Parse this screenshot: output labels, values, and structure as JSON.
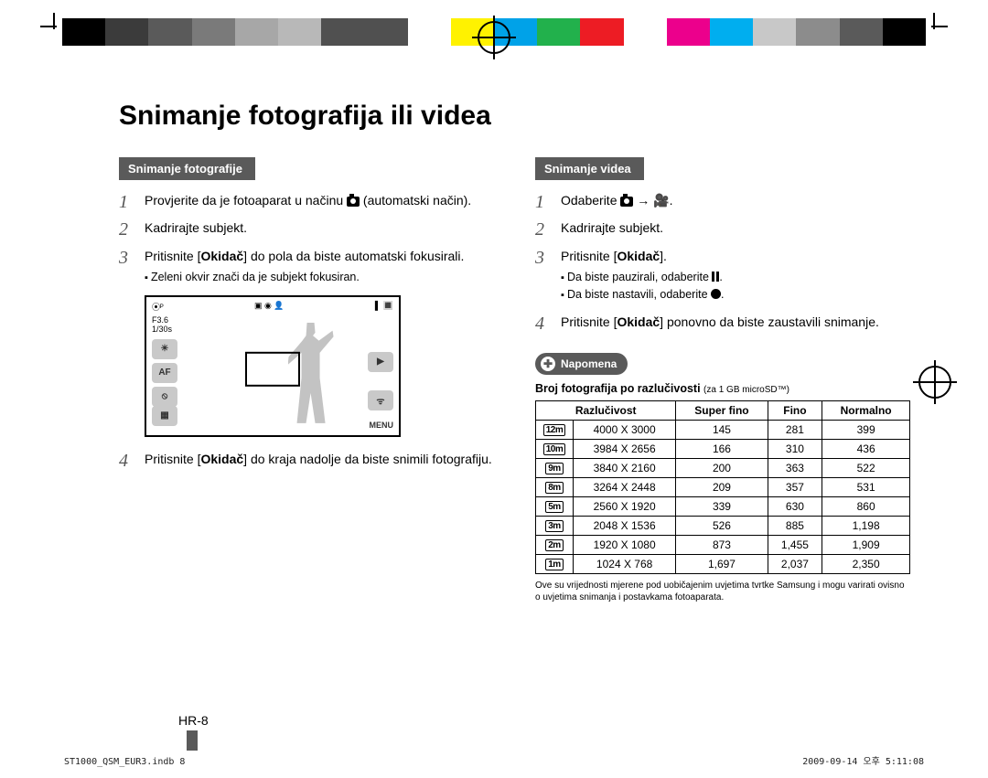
{
  "colorbar": [
    "#000000",
    "#3b3b3b",
    "#5a5a5a",
    "#7a7a7a",
    "#a7a7a7",
    "#b8b8b8",
    "#505050",
    "#505050",
    "#ffffff",
    "#fff200",
    "#00a2e8",
    "#22b14c",
    "#ed1c24",
    "#ffffff",
    "#ec008c",
    "#00aeef",
    "#c8c8c8",
    "#8c8c8c",
    "#5a5a5a",
    "#000000"
  ],
  "title": "Snimanje fotografija ili videa",
  "photo": {
    "heading": "Snimanje fotografije",
    "step1a": "Provjerite da je fotoaparat u načinu ",
    "step1b": " (automatski način).",
    "step2": "Kadrirajte subjekt.",
    "step3a": "Pritisnite [",
    "step3b": "Okidač",
    "step3c": "] do pola da biste automatski fokusirali.",
    "step3_bullet": "Zeleni okvir znači da je subjekt fokusiran.",
    "step4a": "Pritisnite [",
    "step4b": "Okidač",
    "step4c": "] do kraja nadolje da biste snimili fotografiju.",
    "lcd": {
      "f": "F3.6",
      "s": "1/30s",
      "af": "AF",
      "menu": "MENU"
    }
  },
  "video": {
    "heading": "Snimanje videa",
    "step1": "Odaberite ",
    "step2": "Kadrirajte subjekt.",
    "step3a": "Pritisnite [",
    "step3b": "Okidač",
    "step3c": "].",
    "b1": "Da biste pauzirali, odaberite ",
    "b2": "Da biste nastavili, odaberite ",
    "step4a": "Pritisnite [",
    "step4b": "Okidač",
    "step4c": "] ponovno da biste zaustavili snimanje."
  },
  "note_label": "Napomena",
  "table_title_b": "Broj fotografija po razlučivosti ",
  "table_title_s": "(za 1 GB microSD™)",
  "table": {
    "headers": [
      "Razlučivost",
      "Super fino",
      "Fino",
      "Normalno"
    ],
    "rows": [
      {
        "icon": "12m",
        "res": "4000 X 3000",
        "sf": "145",
        "f": "281",
        "n": "399"
      },
      {
        "icon": "10m",
        "res": "3984 X 2656",
        "sf": "166",
        "f": "310",
        "n": "436"
      },
      {
        "icon": "9m",
        "res": "3840 X 2160",
        "sf": "200",
        "f": "363",
        "n": "522"
      },
      {
        "icon": "8m",
        "res": "3264 X 2448",
        "sf": "209",
        "f": "357",
        "n": "531"
      },
      {
        "icon": "5m",
        "res": "2560 X 1920",
        "sf": "339",
        "f": "630",
        "n": "860"
      },
      {
        "icon": "3m",
        "res": "2048 X 1536",
        "sf": "526",
        "f": "885",
        "n": "1,198"
      },
      {
        "icon": "2m",
        "res": "1920 X 1080",
        "sf": "873",
        "f": "1,455",
        "n": "1,909"
      },
      {
        "icon": "1m",
        "res": "1024 X 768",
        "sf": "1,697",
        "f": "2,037",
        "n": "2,350"
      }
    ]
  },
  "footnote": "Ove su vrijednosti mjerene pod uobičajenim uvjetima tvrtke Samsung i mogu varirati ovisno o uvjetima snimanja i postavkama fotoaparata.",
  "page_number": "HR-8",
  "footer_left": "ST1000_QSM_EUR3.indb   8",
  "footer_right": "2009-09-14   오후 5:11:08"
}
